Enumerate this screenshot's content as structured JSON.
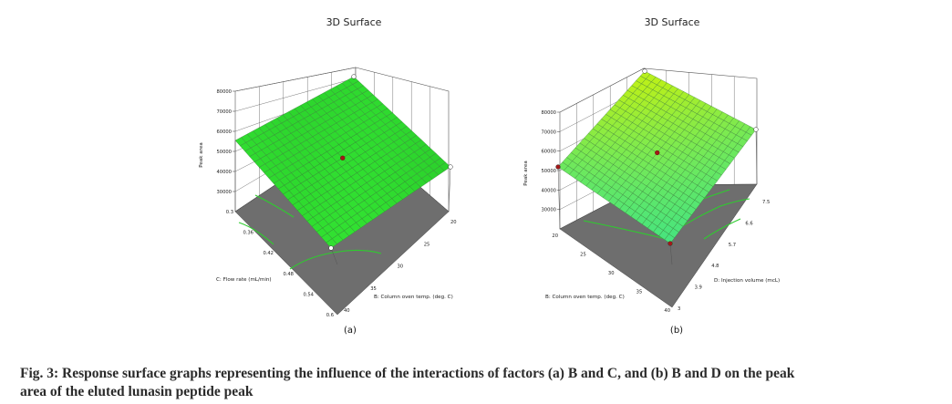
{
  "caption": {
    "line1": "Fig. 3: Response surface graphs representing the influence of the interactions of factors (a) B and C, and (b) B and D on the peak",
    "line2": "area of the eluted lunasin peptide peak"
  },
  "chart_data": [
    {
      "type": "surface",
      "panel_label": "(a)",
      "title": "3D Surface",
      "zlabel": "Peak area",
      "xlabel": "B: Column oven temp. (deg. C)",
      "ylabel": "C: Flow rate (mL/min)",
      "x_ticks": [
        "20",
        "25",
        "30",
        "35",
        "40"
      ],
      "y_ticks": [
        "0.3",
        "0.36",
        "0.42",
        "0.48",
        "0.54",
        "0.6"
      ],
      "z_ticks": [
        "30000",
        "40000",
        "50000",
        "60000",
        "70000",
        "80000"
      ],
      "xlim": [
        20,
        40
      ],
      "ylim": [
        0.3,
        0.6
      ],
      "zlim": [
        20000,
        80000
      ],
      "corner_values": {
        "x20_y0.3": 52000,
        "x40_y0.3": 79000,
        "x20_y0.6": 36000,
        "x40_y0.6": 14000
      },
      "center_point": {
        "x": 30,
        "y": 0.45,
        "z": 46000
      },
      "surface_color": "#33e633",
      "floor_color": "#6e6e6e",
      "contour_color": "#2ecc2e",
      "grid": true
    },
    {
      "type": "surface",
      "panel_label": "(b)",
      "title": "3D Surface",
      "zlabel": "Peak area",
      "xlabel": "B: Column oven temp. (deg. C)",
      "ylabel": "D: Injection volume (mcL)",
      "x_ticks": [
        "20",
        "25",
        "30",
        "35",
        "40"
      ],
      "y_ticks": [
        "3",
        "3.9",
        "4.8",
        "5.7",
        "6.6",
        "7.5"
      ],
      "z_ticks": [
        "30000",
        "40000",
        "50000",
        "60000",
        "70000",
        "80000"
      ],
      "xlim": [
        20,
        40
      ],
      "ylim": [
        3,
        7.5
      ],
      "zlim": [
        20000,
        80000
      ],
      "corner_values": {
        "x20_y3": 49000,
        "x20_y7.5": 85000,
        "x40_y7.5": 58000,
        "x40_y3": 18000
      },
      "center_point": {
        "x": 30,
        "y": 5.25,
        "z": 50000
      },
      "surface_color_high": "#b8f01c",
      "surface_color_low": "#20e0a0",
      "floor_color": "#6e6e6e",
      "contour_color": "#2ecc2e",
      "grid": true
    }
  ]
}
